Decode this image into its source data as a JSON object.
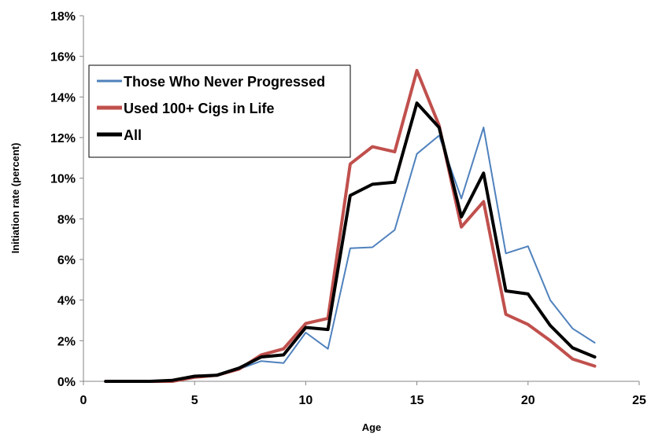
{
  "chart_data": {
    "type": "line",
    "title": "",
    "xlabel": "Age",
    "ylabel": "Initiation rate (percent)",
    "xlim": [
      0,
      25
    ],
    "ylim": [
      0,
      18
    ],
    "x_ticks": [
      "0",
      "5",
      "10",
      "15",
      "20",
      "25"
    ],
    "y_ticks": [
      "0%",
      "2%",
      "4%",
      "6%",
      "8%",
      "10%",
      "12%",
      "14%",
      "16%",
      "18%"
    ],
    "grid": false,
    "legend_position": "top-left",
    "x": [
      1,
      2,
      3,
      4,
      5,
      6,
      7,
      8,
      9,
      10,
      11,
      12,
      13,
      14,
      15,
      16,
      17,
      18,
      19,
      20,
      21,
      22,
      23
    ],
    "series": [
      {
        "name": "Those Who Never Progressed",
        "color": "#4f81bd",
        "values": [
          0,
          0,
          0,
          0.05,
          0.25,
          0.3,
          0.6,
          1.0,
          0.9,
          2.4,
          1.6,
          6.55,
          6.6,
          7.45,
          11.2,
          12.1,
          9.0,
          12.5,
          6.3,
          6.65,
          4.0,
          2.6,
          1.9
        ]
      },
      {
        "name": "Used 100+ Cigs in Life",
        "color": "#c0504d",
        "values": [
          0,
          0,
          0,
          0,
          0.2,
          0.3,
          0.6,
          1.3,
          1.6,
          2.85,
          3.1,
          10.7,
          11.55,
          11.3,
          15.3,
          12.6,
          7.6,
          8.85,
          3.3,
          2.8,
          2.0,
          1.1,
          0.75
        ]
      },
      {
        "name": "All",
        "color": "#000000",
        "values": [
          0,
          0,
          0,
          0.05,
          0.25,
          0.3,
          0.65,
          1.2,
          1.3,
          2.65,
          2.55,
          9.15,
          9.7,
          9.8,
          13.7,
          12.5,
          8.1,
          10.25,
          4.45,
          4.3,
          2.75,
          1.65,
          1.2
        ]
      }
    ]
  }
}
